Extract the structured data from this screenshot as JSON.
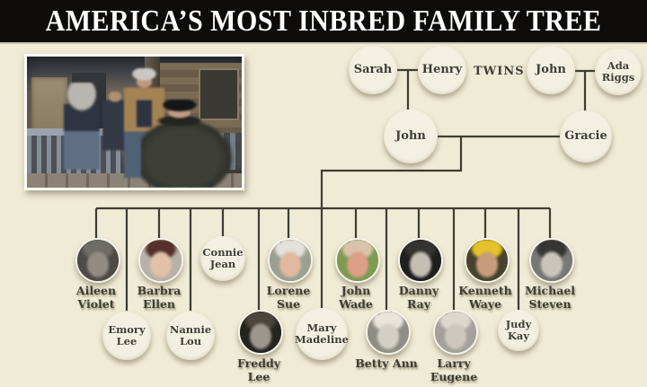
{
  "title": "AMERICA’S MOST INBRED FAMILY TREE",
  "colors": {
    "header_bg": "#0d0c0a",
    "header_text": "#ffffff",
    "page_bg": "#f0ebd6",
    "line": "#3d3d31",
    "circle_fill": "#f4f0e1",
    "text": "#3d3d33"
  },
  "tree": {
    "twins_label": "TWINS",
    "ancestors": [
      {
        "id": "sarah",
        "name": "Sarah",
        "display": "Sarah",
        "node": "text"
      },
      {
        "id": "henry",
        "name": "Henry",
        "display": "Henry",
        "node": "text"
      },
      {
        "id": "john-sr",
        "name": "John",
        "display": "John",
        "node": "text"
      },
      {
        "id": "ada-riggs",
        "name": "Ada Riggs",
        "display": "Ada\nRiggs",
        "node": "text"
      },
      {
        "id": "john-jr",
        "name": "John",
        "display": "John",
        "node": "text"
      },
      {
        "id": "gracie",
        "name": "Gracie",
        "display": "Gracie",
        "node": "text"
      }
    ],
    "children": [
      {
        "id": "aileen-violet",
        "name": "Aileen Violet",
        "display": "Aileen\nViolet",
        "node": "photo",
        "photo_colors": {
          "bg": "#4e4b47",
          "hair": "#6f6c66",
          "face": "#928c82"
        }
      },
      {
        "id": "emory-lee",
        "name": "Emory Lee",
        "display": "Emory\nLee",
        "node": "text"
      },
      {
        "id": "barbra-ellen",
        "name": "Barbra Ellen",
        "display": "Barbra\nEllen",
        "node": "photo",
        "photo_colors": {
          "bg": "#b7b2a9",
          "hair": "#56302a",
          "face": "#e3c1a8"
        }
      },
      {
        "id": "nannie-lou",
        "name": "Nannie Lou",
        "display": "Nannie\nLou",
        "node": "text"
      },
      {
        "id": "connie-jean",
        "name": "Connie Jean",
        "display": "Connie\nJean",
        "node": "text"
      },
      {
        "id": "freddy-lee",
        "name": "Freddy Lee",
        "display": "Freddy\nLee",
        "node": "photo",
        "photo_colors": {
          "bg": "#26241f",
          "hair": "#4a453d",
          "face": "#9d968c"
        }
      },
      {
        "id": "lorene-sue",
        "name": "Lorene Sue",
        "display": "Lorene\nSue",
        "node": "photo",
        "photo_colors": {
          "bg": "#9aa193",
          "hair": "#e4e1da",
          "face": "#e0b9a0"
        }
      },
      {
        "id": "mary-madeline",
        "name": "Mary Madeline",
        "display": "Mary\nMadeline",
        "node": "text"
      },
      {
        "id": "john-wade",
        "name": "John Wade",
        "display": "John\nWade",
        "node": "photo",
        "photo_colors": {
          "bg": "#7e9b52",
          "hair": "#d9c4ab",
          "face": "#dd9f85"
        }
      },
      {
        "id": "betty-ann",
        "name": "Betty Ann",
        "display": "Betty Ann",
        "node": "photo",
        "photo_colors": {
          "bg": "#8f8d86",
          "hair": "#e8e4dc",
          "face": "#d4cfc6"
        }
      },
      {
        "id": "danny-ray",
        "name": "Danny Ray",
        "display": "Danny\nRay",
        "node": "photo",
        "photo_colors": {
          "bg": "#201f1d",
          "hair": "#35332f",
          "face": "#c4beb3"
        }
      },
      {
        "id": "larry-eugene",
        "name": "Larry Eugene",
        "display": "Larry\nEugene",
        "node": "photo",
        "photo_colors": {
          "bg": "#a3a199",
          "hair": "#dcd8d0",
          "face": "#cdc7be"
        }
      },
      {
        "id": "kenneth-waye",
        "name": "Kenneth Waye",
        "display": "Kenneth\nWaye",
        "node": "photo",
        "photo_colors": {
          "bg": "#45432e",
          "hair": "#e5c229",
          "face": "#c79c7b"
        }
      },
      {
        "id": "judy-kay",
        "name": "Judy Kay",
        "display": "Judy\nKay",
        "node": "text"
      },
      {
        "id": "michael-steven",
        "name": "Michael Steven",
        "display": "Michael\nSteven",
        "node": "photo",
        "photo_colors": {
          "bg": "#7a7875",
          "hair": "#383633",
          "face": "#cac5bc"
        }
      }
    ]
  }
}
